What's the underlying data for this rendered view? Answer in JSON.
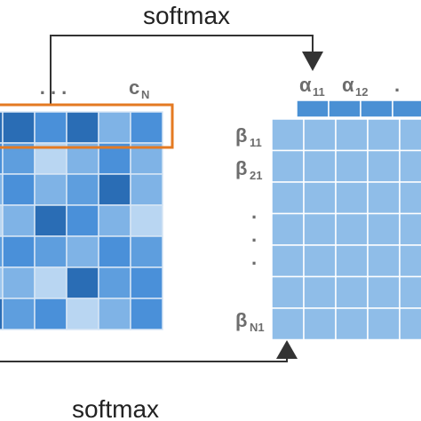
{
  "labels": {
    "top_op": "softmax",
    "bottom_op": "softmax",
    "col_last": {
      "base": "c",
      "sub": "N"
    },
    "alpha_1": {
      "base": "α",
      "sub": "11"
    },
    "alpha_2": {
      "base": "α",
      "sub": "12"
    },
    "beta_1": {
      "base": "β",
      "sub": "11"
    },
    "beta_2": {
      "base": "β",
      "sub": "21"
    },
    "beta_n": {
      "base": "β",
      "sub": "N1"
    },
    "h_dots": ". . .",
    "alpha_dots": ".",
    "v_dot": "."
  },
  "colors": {
    "highlight_box": "#e47a22",
    "arrow": "#333333",
    "right_matrix_cell": "#8fbde8",
    "right_matrix_grid": "#ffffff",
    "alpha_strip": "#4a90d4",
    "left_palette": [
      "#2a6db5",
      "#4a90d9",
      "#7fb3e6",
      "#b9d6f2",
      "#5e9ede",
      "#9cc6ee"
    ]
  },
  "left_matrix": {
    "rows": 7,
    "cols": 5,
    "shades": [
      [
        0,
        1,
        0,
        2,
        1
      ],
      [
        4,
        3,
        2,
        1,
        2
      ],
      [
        1,
        2,
        4,
        0,
        2
      ],
      [
        2,
        0,
        1,
        2,
        3
      ],
      [
        1,
        4,
        2,
        1,
        4
      ],
      [
        2,
        3,
        0,
        4,
        1
      ],
      [
        4,
        1,
        3,
        2,
        1
      ]
    ]
  },
  "right_matrix": {
    "rows": 7,
    "cols": 5
  }
}
